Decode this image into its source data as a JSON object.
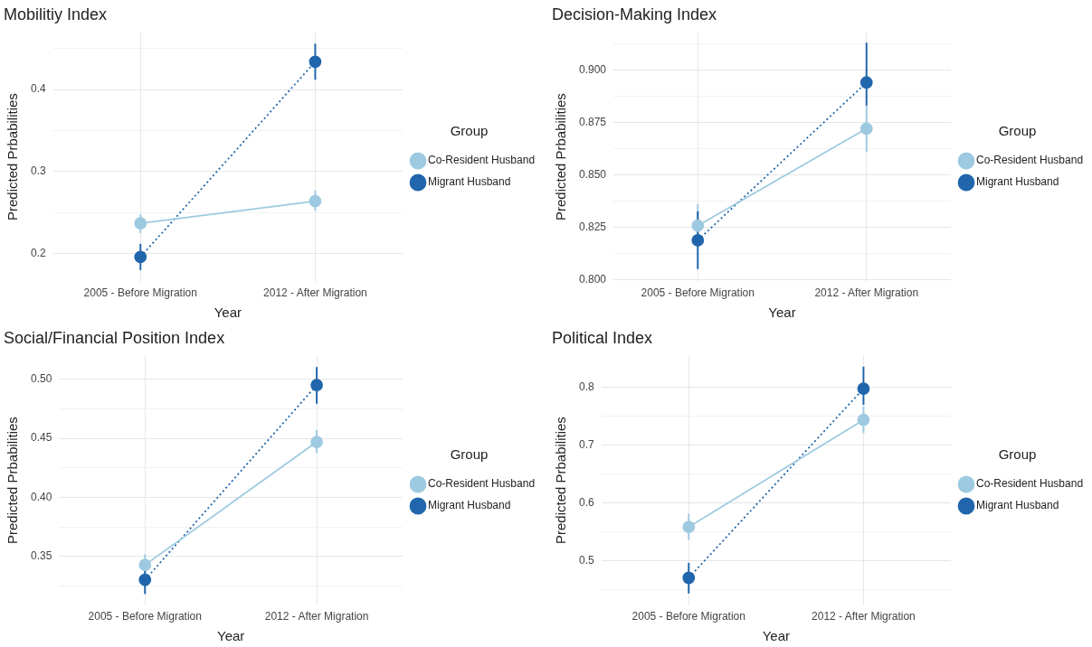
{
  "chart_data": [
    {
      "type": "line",
      "title": "Mobilitiy Index",
      "xlabel": "Year",
      "ylabel": "Predicted Prbabilities",
      "legend_title": "Group",
      "legend": "right",
      "grid": true,
      "marker": "circle",
      "categories": [
        "2005 - Before Migration",
        "2012 - After Migration"
      ],
      "ylim": [
        0.166,
        0.47
      ],
      "yticks": [
        0.2,
        {
          "value": 0.25,
          "label": null
        },
        0.3,
        {
          "value": 0.35,
          "label": null
        },
        0.4,
        {
          "value": 0.45,
          "label": null
        }
      ],
      "series": [
        {
          "name": "Co-Resident Husband",
          "color": "#9ecae1",
          "line_style": "solid",
          "values": [
            0.237,
            0.264
          ],
          "errors": [
            [
              0.225,
              0.248
            ],
            [
              0.252,
              0.277
            ]
          ]
        },
        {
          "name": "Migrant Husband",
          "color": "#2166ac",
          "line_style": "dotted",
          "values": [
            0.196,
            0.434
          ],
          "errors": [
            [
              0.18,
              0.212
            ],
            [
              0.412,
              0.456
            ]
          ]
        }
      ]
    },
    {
      "type": "line",
      "title": "Decision-Making Index",
      "xlabel": "Year",
      "ylabel": "Predicted Prbabilities",
      "legend_title": "Group",
      "legend": "right",
      "grid": true,
      "marker": "circle",
      "categories": [
        "2005 - Before Migration",
        "2012 - After Migration"
      ],
      "ylim": [
        0.799,
        0.918
      ],
      "yticks": [
        {
          "value": 0.8,
          "label": "0.800"
        },
        {
          "value": 0.8125,
          "label": null
        },
        {
          "value": 0.825,
          "label": "0.825"
        },
        {
          "value": 0.8375,
          "label": null
        },
        {
          "value": 0.85,
          "label": "0.850"
        },
        {
          "value": 0.8625,
          "label": null
        },
        {
          "value": 0.875,
          "label": "0.875"
        },
        {
          "value": 0.8875,
          "label": null
        },
        {
          "value": 0.9,
          "label": "0.900"
        },
        {
          "value": 0.9125,
          "label": null
        }
      ],
      "series": [
        {
          "name": "Co-Resident Husband",
          "color": "#9ecae1",
          "line_style": "solid",
          "values": [
            0.8257,
            0.872
          ],
          "errors": [
            [
              0.8155,
              0.836
            ],
            [
              0.861,
              0.883
            ]
          ]
        },
        {
          "name": "Migrant Husband",
          "color": "#2166ac",
          "line_style": "dotted",
          "values": [
            0.8187,
            0.894
          ],
          "errors": [
            [
              0.805,
              0.8325
            ],
            [
              0.883,
              0.913
            ]
          ]
        }
      ]
    },
    {
      "type": "line",
      "title": "Social/Financial Position Index",
      "xlabel": "Year",
      "ylabel": "Predicted Prbabilities",
      "legend_title": "Group",
      "legend": "right",
      "grid": true,
      "marker": "circle",
      "categories": [
        "2005 - Before Migration",
        "2012 - After Migration"
      ],
      "ylim": [
        0.309,
        0.52
      ],
      "yticks": [
        {
          "value": 0.325,
          "label": null
        },
        {
          "value": 0.35,
          "label": "0.35"
        },
        {
          "value": 0.375,
          "label": null
        },
        {
          "value": 0.4,
          "label": "0.40"
        },
        {
          "value": 0.425,
          "label": null
        },
        {
          "value": 0.45,
          "label": "0.45"
        },
        {
          "value": 0.475,
          "label": null
        },
        {
          "value": 0.5,
          "label": "0.50"
        }
      ],
      "series": [
        {
          "name": "Co-Resident Husband",
          "color": "#9ecae1",
          "line_style": "solid",
          "values": [
            0.343,
            0.447
          ],
          "errors": [
            [
              0.334,
              0.352
            ],
            [
              0.4376,
              0.457
            ]
          ]
        },
        {
          "name": "Migrant Husband",
          "color": "#2166ac",
          "line_style": "dotted",
          "values": [
            0.3303,
            0.4952
          ],
          "errors": [
            [
              0.3184,
              0.339
            ],
            [
              0.4793,
              0.5104
            ]
          ]
        }
      ]
    },
    {
      "type": "line",
      "title": "Political Index",
      "xlabel": "Year",
      "ylabel": "Predicted Prbabilities",
      "legend_title": "Group",
      "legend": "right",
      "grid": true,
      "marker": "circle",
      "categories": [
        "2005 - Before Migration",
        "2012 - After Migration"
      ],
      "ylim": [
        0.424,
        0.855
      ],
      "yticks": [
        {
          "value": 0.45,
          "label": null
        },
        0.5,
        {
          "value": 0.55,
          "label": null
        },
        0.6,
        {
          "value": 0.65,
          "label": null
        },
        0.7,
        {
          "value": 0.75,
          "label": null
        },
        0.8
      ],
      "series": [
        {
          "name": "Co-Resident Husband",
          "color": "#9ecae1",
          "line_style": "solid",
          "values": [
            0.559,
            0.744
          ],
          "errors": [
            [
              0.537,
              0.582
            ],
            [
              0.721,
              0.767
            ]
          ]
        },
        {
          "name": "Migrant Husband",
          "color": "#2166ac",
          "line_style": "dotted",
          "values": [
            0.471,
            0.798
          ],
          "errors": [
            [
              0.444,
              0.497
            ],
            [
              0.77,
              0.836
            ]
          ]
        }
      ]
    }
  ]
}
